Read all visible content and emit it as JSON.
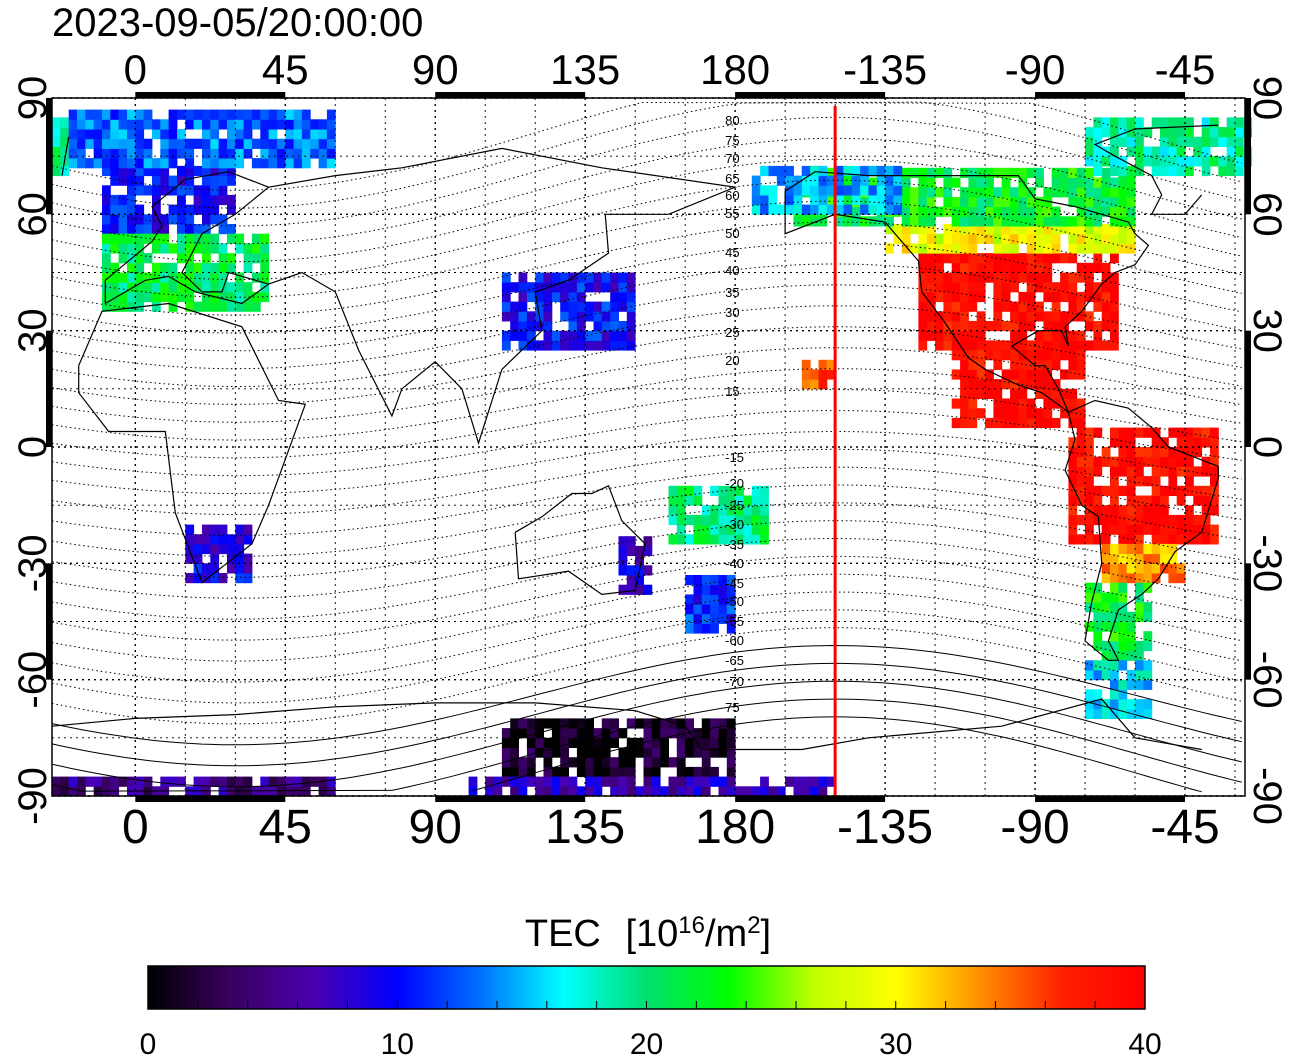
{
  "timestamp": "2023-09-05/20:00:00",
  "lon_ticks": [
    {
      "lon": 0,
      "label": "0"
    },
    {
      "lon": 45,
      "label": "45"
    },
    {
      "lon": 90,
      "label": "90"
    },
    {
      "lon": 135,
      "label": "135"
    },
    {
      "lon": 180,
      "label": "180"
    },
    {
      "lon": 225,
      "label": "-135"
    },
    {
      "lon": 270,
      "label": "-90"
    },
    {
      "lon": 315,
      "label": "-45"
    }
  ],
  "lat_ticks": [
    {
      "lat": 90,
      "label": "90"
    },
    {
      "lat": 60,
      "label": "60"
    },
    {
      "lat": 30,
      "label": "30"
    },
    {
      "lat": 0,
      "label": "0"
    },
    {
      "lat": -30,
      "label": "-30"
    },
    {
      "lat": -60,
      "label": "-60"
    },
    {
      "lat": -90,
      "label": "-90"
    }
  ],
  "map_extent": {
    "lon_min": -25,
    "lon_max": 333,
    "lat_min": -90,
    "lat_max": 90
  },
  "subsolar_meridian_lon": -150,
  "meridian_color": "#ff0000",
  "contour_labels_north": [
    "80",
    "75",
    "70",
    "65",
    "60",
    "55",
    "50",
    "45",
    "40",
    "35",
    "30",
    "25",
    "20",
    "15"
  ],
  "contour_labels_south": [
    "-15",
    "-20",
    "-25",
    "-30",
    "-35",
    "-40",
    "-45",
    "-50",
    "-55",
    "-60",
    "-65",
    "-70",
    "75"
  ],
  "colorbar": {
    "title": "TEC",
    "unit": "[10",
    "unit_sup": "16",
    "unit_mid": "/m",
    "unit_sup2": "2",
    "unit_end": "]",
    "min": 0,
    "max": 40,
    "tick_labels": [
      {
        "value": 0,
        "label": "0"
      },
      {
        "value": 10,
        "label": "10"
      },
      {
        "value": 20,
        "label": "20"
      },
      {
        "value": 30,
        "label": "30"
      },
      {
        "value": 40,
        "label": "40"
      }
    ],
    "colors": [
      "#000000",
      "#3a0060",
      "#4a00b0",
      "#0000ff",
      "#0070ff",
      "#00ffff",
      "#00e070",
      "#00ff00",
      "#c0ff00",
      "#ffff00",
      "#ff9000",
      "#ff2000",
      "#ff0000"
    ]
  },
  "tec_regions": [
    {
      "name": "north-america",
      "lon": [
        -125,
        -65
      ],
      "lat": [
        25,
        50
      ],
      "tec": 39
    },
    {
      "name": "central-america",
      "lon": [
        -115,
        -75
      ],
      "lat": [
        5,
        25
      ],
      "tec": 39
    },
    {
      "name": "south-america-north",
      "lon": [
        -80,
        -35
      ],
      "lat": [
        -25,
        5
      ],
      "tec": 39
    },
    {
      "name": "south-america-mid",
      "lon": [
        -70,
        -45
      ],
      "lat": [
        -35,
        -25
      ],
      "tec": 33
    },
    {
      "name": "patagonia",
      "lon": [
        -75,
        -55
      ],
      "lat": [
        -55,
        -35
      ],
      "tec": 22
    },
    {
      "name": "tierra-del-fuego",
      "lon": [
        -75,
        -55
      ],
      "lat": [
        -70,
        -55
      ],
      "tec": 16
    },
    {
      "name": "canada-south",
      "lon": [
        -135,
        -60
      ],
      "lat": [
        50,
        57
      ],
      "tec": 29
    },
    {
      "name": "canada-north",
      "lon": [
        -165,
        -60
      ],
      "lat": [
        57,
        72
      ],
      "tec": 22
    },
    {
      "name": "greenland",
      "lon": [
        -75,
        -20
      ],
      "lat": [
        70,
        85
      ],
      "tec": 19
    },
    {
      "name": "alaska",
      "lon": [
        -175,
        -130
      ],
      "lat": [
        60,
        72
      ],
      "tec": 15
    },
    {
      "name": "europe-north",
      "lon": [
        -10,
        30
      ],
      "lat": [
        55,
        72
      ],
      "tec": 10
    },
    {
      "name": "europe-south",
      "lon": [
        -10,
        40
      ],
      "lat": [
        35,
        55
      ],
      "tec": 21
    },
    {
      "name": "arctic-europe",
      "lon": [
        -20,
        60
      ],
      "lat": [
        72,
        85
      ],
      "tec": 13
    },
    {
      "name": "japan-china",
      "lon": [
        110,
        150
      ],
      "lat": [
        25,
        45
      ],
      "tec": 10
    },
    {
      "name": "south-africa",
      "lon": [
        15,
        35
      ],
      "lat": [
        -35,
        -20
      ],
      "tec": 9
    },
    {
      "name": "new-zealand",
      "lon": [
        165,
        180
      ],
      "lat": [
        -48,
        -35
      ],
      "tec": 11
    },
    {
      "name": "australia-east",
      "lon": [
        145,
        155
      ],
      "lat": [
        -38,
        -25
      ],
      "tec": 8
    },
    {
      "name": "antarctica-dark",
      "lon": [
        110,
        180
      ],
      "lat": [
        -85,
        -70
      ],
      "tec": 1
    },
    {
      "name": "antarctica-band",
      "lon": [
        -25,
        60
      ],
      "lat": [
        -90,
        -85
      ],
      "tec": 5
    },
    {
      "name": "antarctica-band-2",
      "lon": [
        100,
        -150
      ],
      "lat": [
        -90,
        -85
      ],
      "tec": 7
    },
    {
      "name": "hawaii",
      "lon": [
        -160,
        -150
      ],
      "lat": [
        15,
        22
      ],
      "tec": 36
    },
    {
      "name": "pacific-south",
      "lon": [
        160,
        190
      ],
      "lat": [
        -25,
        -10
      ],
      "tec": 20
    }
  ]
}
